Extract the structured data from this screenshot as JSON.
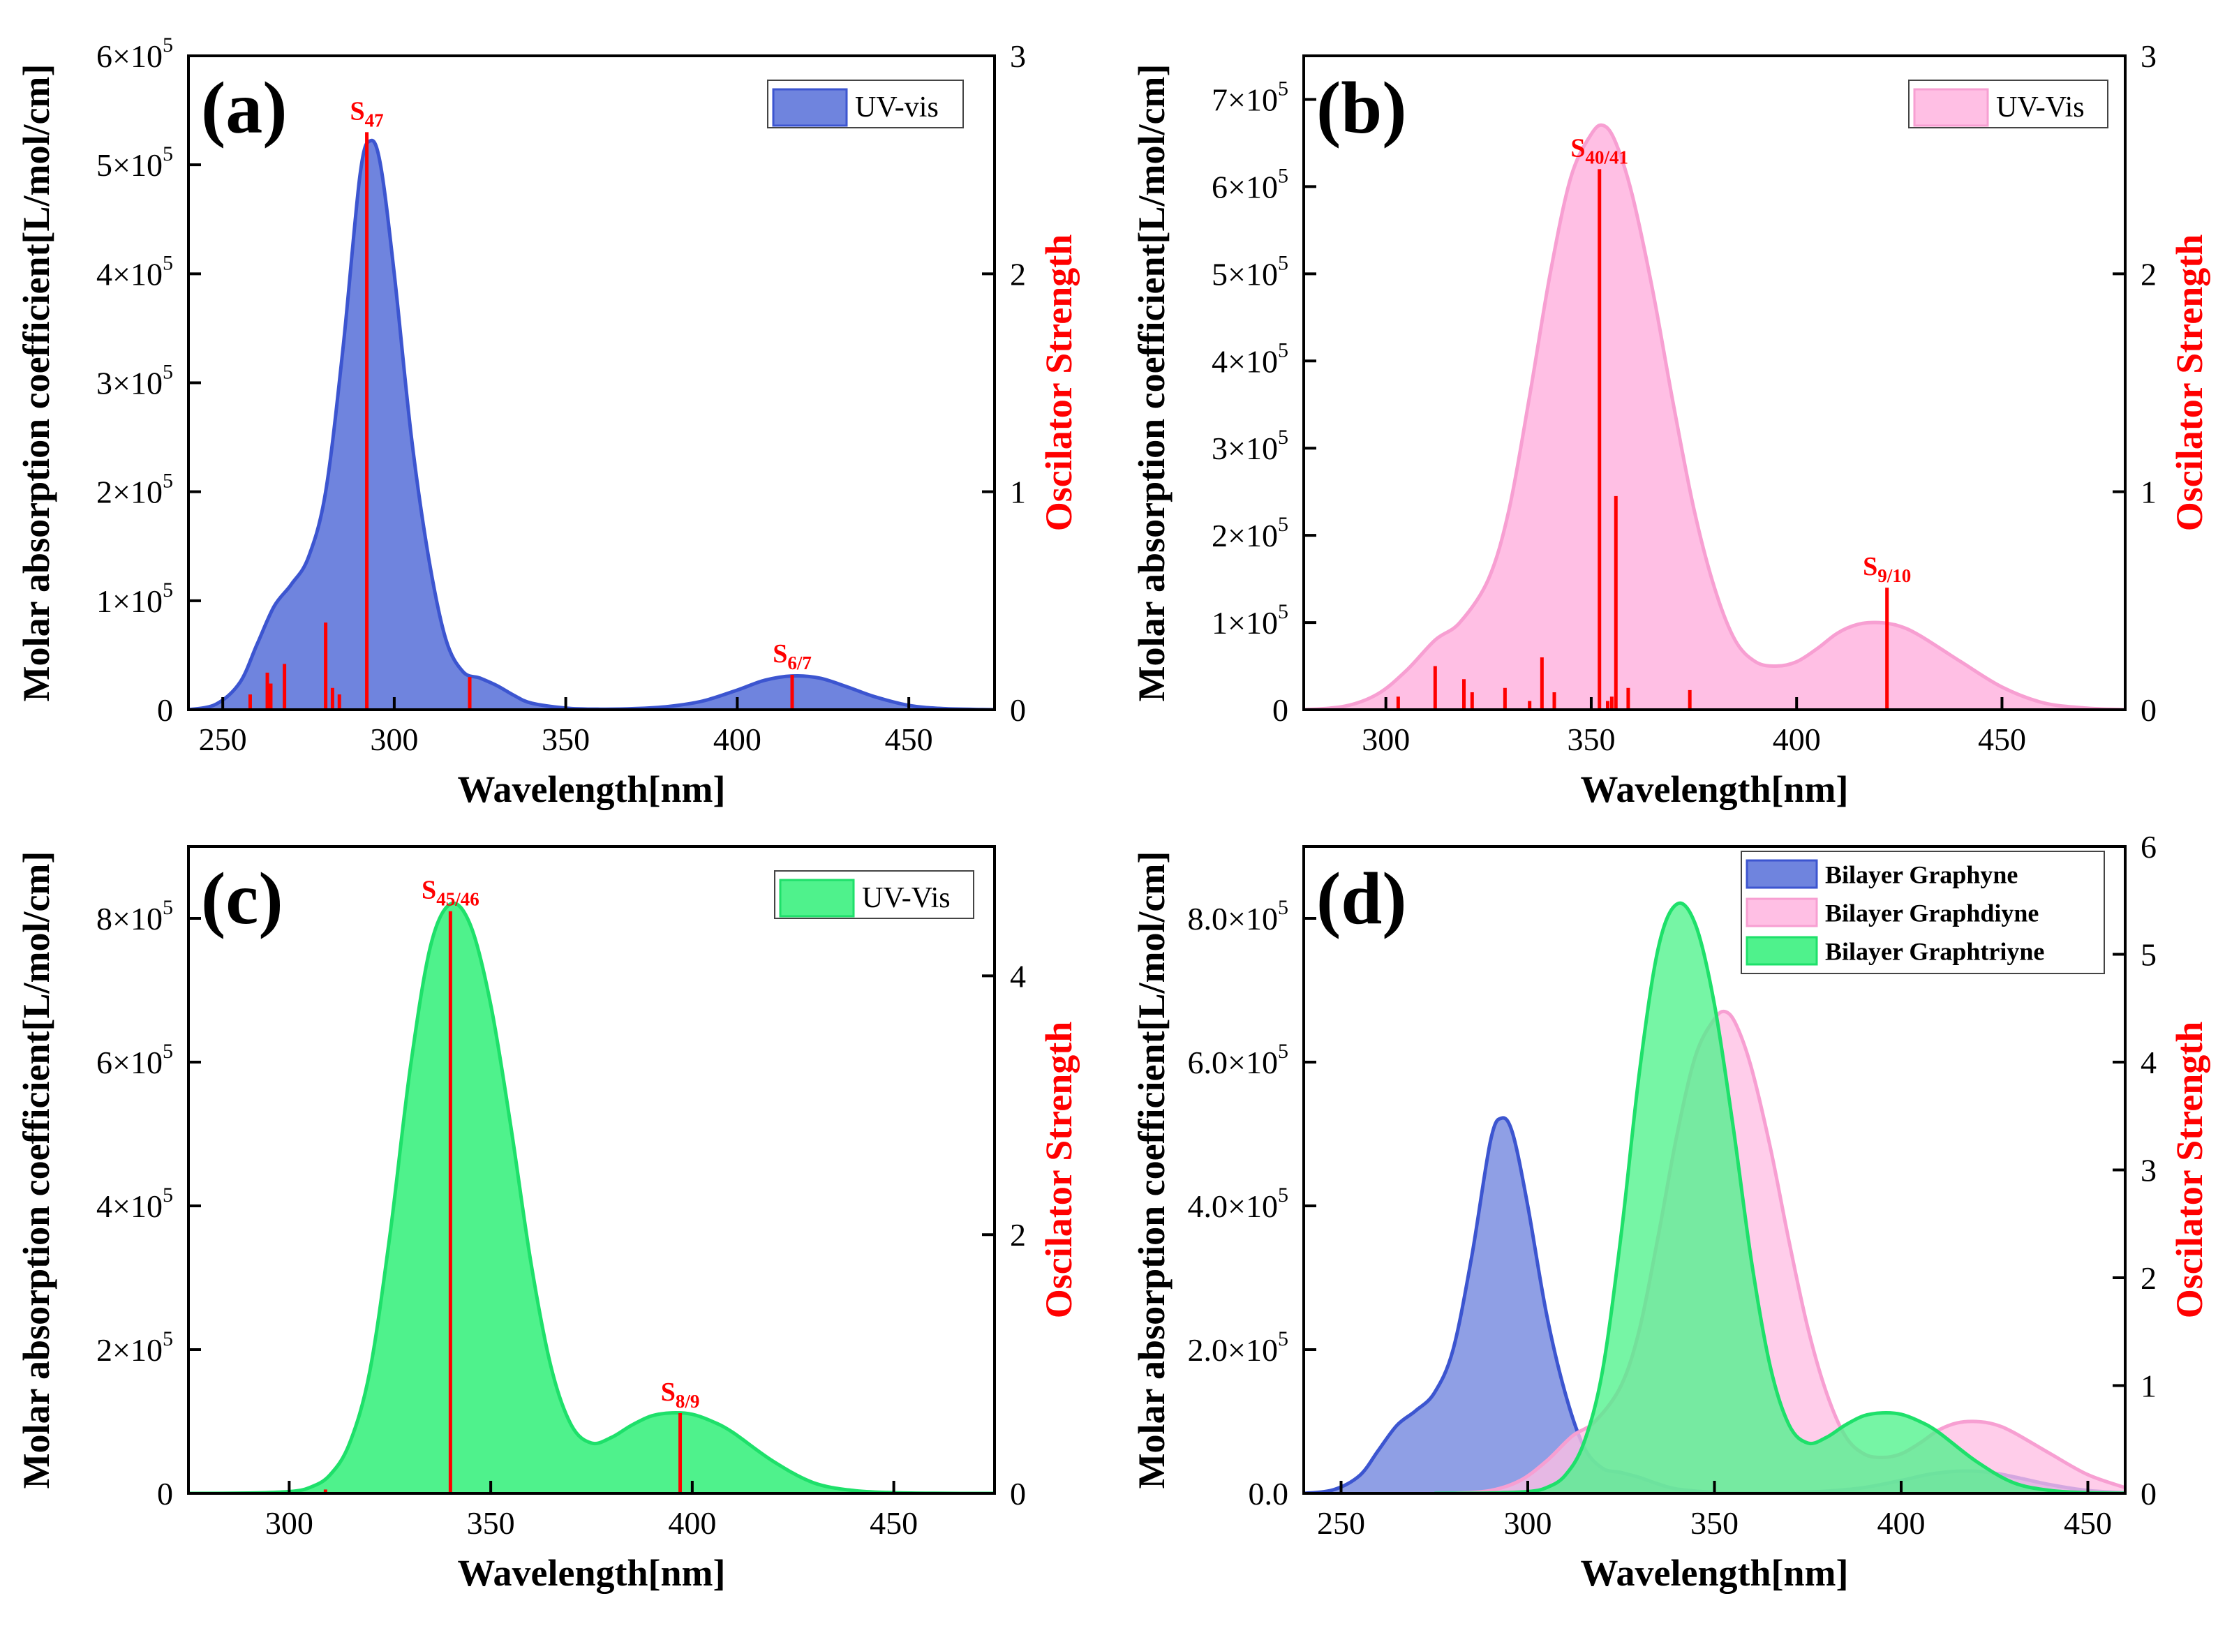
{
  "colors": {
    "graphyne_fill": "#6f84de",
    "graphyne_line": "#3c55d0",
    "graphdiyne_fill": "#ffbfe4",
    "graphdiyne_line": "#f79fd2",
    "graphtriyne_fill": "#4ff28c",
    "graphtriyne_line": "#1ee06a",
    "stick": "#ff0000",
    "axis": "#000000"
  },
  "chart_data": [
    {
      "panel_label": "(a)",
      "type": "area",
      "xlabel": "Wavelength[nm]",
      "ylabel": "Molar absorption coefficient[L/mol/cm]",
      "y2label": "Oscilator Strength",
      "xlim": [
        240,
        475
      ],
      "ylim": [
        0,
        600000
      ],
      "y2lim": [
        0,
        3
      ],
      "xticks": [
        250,
        300,
        350,
        400,
        450
      ],
      "xtick_labels": [
        "250",
        "300",
        "350",
        "400",
        "450"
      ],
      "yticks": [
        0,
        100000,
        200000,
        300000,
        400000,
        500000,
        600000
      ],
      "ytick_labels": [
        {
          "base": "0",
          "exp": ""
        },
        {
          "base": "1×10",
          "exp": "5"
        },
        {
          "base": "2×10",
          "exp": "5"
        },
        {
          "base": "3×10",
          "exp": "5"
        },
        {
          "base": "4×10",
          "exp": "5"
        },
        {
          "base": "5×10",
          "exp": "5"
        },
        {
          "base": "6×10",
          "exp": "5"
        }
      ],
      "y2ticks": [
        0,
        1,
        2,
        3
      ],
      "y2tick_labels": [
        "0",
        "1",
        "2",
        "3"
      ],
      "legend_location": "top-right",
      "series": [
        {
          "name": "UV-vis",
          "color_key": "graphyne",
          "x": [
            240,
            248,
            255,
            260,
            265,
            270,
            275,
            280,
            285,
            290,
            293,
            296,
            300,
            305,
            310,
            315,
            320,
            325,
            330,
            335,
            340,
            350,
            360,
            370,
            380,
            390,
            400,
            408,
            416,
            424,
            432,
            440,
            450,
            460,
            475
          ],
          "y": [
            0,
            5000,
            25000,
            60000,
            95000,
            115000,
            140000,
            200000,
            330000,
            490000,
            522000,
            500000,
            400000,
            250000,
            140000,
            65000,
            35000,
            29000,
            22000,
            13000,
            6000,
            1500,
            500,
            1000,
            3000,
            8000,
            18000,
            27000,
            31000,
            29000,
            21000,
            12000,
            4000,
            1000,
            0
          ]
        }
      ],
      "sticks": {
        "x": [
          258,
          263,
          264,
          268,
          280,
          282,
          284,
          292,
          322,
          416
        ],
        "y": [
          0.07,
          0.17,
          0.12,
          0.21,
          0.4,
          0.1,
          0.07,
          2.65,
          0.15,
          0.16
        ]
      },
      "peak_labels": [
        {
          "main": "S",
          "sub": "47",
          "x": 292
        },
        {
          "main": "S",
          "sub": "6/7",
          "x": 416
        }
      ]
    },
    {
      "panel_label": "(b)",
      "type": "area",
      "xlabel": "Wavelength[nm]",
      "ylabel": "Molar absorption coefficient[L/mol/cm]",
      "y2label": "Oscilator Strength",
      "xlim": [
        280,
        480
      ],
      "ylim": [
        0,
        750000
      ],
      "y2lim": [
        0,
        3
      ],
      "xticks": [
        300,
        350,
        400,
        450
      ],
      "xtick_labels": [
        "300",
        "350",
        "400",
        "450"
      ],
      "yticks": [
        0,
        100000,
        200000,
        300000,
        400000,
        500000,
        600000,
        700000
      ],
      "ytick_labels": [
        {
          "base": "0",
          "exp": ""
        },
        {
          "base": "1×10",
          "exp": "5"
        },
        {
          "base": "2×10",
          "exp": "5"
        },
        {
          "base": "3×10",
          "exp": "5"
        },
        {
          "base": "4×10",
          "exp": "5"
        },
        {
          "base": "5×10",
          "exp": "5"
        },
        {
          "base": "6×10",
          "exp": "5"
        },
        {
          "base": "7×10",
          "exp": "5"
        }
      ],
      "y2ticks": [
        0,
        1,
        2,
        3
      ],
      "y2tick_labels": [
        "0",
        "1",
        "2",
        "3"
      ],
      "legend_location": "top-right",
      "series": [
        {
          "name": "UV-Vis",
          "color_key": "graphdiyne",
          "x": [
            280,
            290,
            298,
            305,
            312,
            318,
            325,
            330,
            335,
            340,
            345,
            350,
            353,
            356,
            360,
            365,
            370,
            375,
            380,
            385,
            390,
            395,
            400,
            405,
            410,
            415,
            420,
            425,
            430,
            440,
            450,
            460,
            470,
            480
          ],
          "y": [
            0,
            4000,
            18000,
            45000,
            80000,
            100000,
            150000,
            230000,
            360000,
            500000,
            610000,
            660000,
            670000,
            650000,
            590000,
            480000,
            350000,
            230000,
            140000,
            80000,
            55000,
            50000,
            55000,
            70000,
            88000,
            98000,
            100000,
            96000,
            85000,
            55000,
            26000,
            8000,
            2000,
            0
          ]
        }
      ],
      "sticks": {
        "x": [
          303,
          312,
          319,
          321,
          329,
          335,
          338,
          341,
          352,
          354,
          355,
          356,
          359,
          374,
          422
        ],
        "y": [
          0.06,
          0.2,
          0.14,
          0.08,
          0.1,
          0.04,
          0.24,
          0.08,
          2.48,
          0.04,
          0.06,
          0.98,
          0.1,
          0.09,
          0.56
        ]
      },
      "peak_labels": [
        {
          "main": "S",
          "sub": "40/41",
          "x": 352
        },
        {
          "main": "S",
          "sub": "9/10",
          "x": 422
        }
      ]
    },
    {
      "panel_label": "(c)",
      "type": "area",
      "xlabel": "Wavelength[nm]",
      "ylabel": "Molar absorption coefficient[L/mol/cm]",
      "y2label": "Oscilator Strength",
      "xlim": [
        275,
        475
      ],
      "ylim": [
        0,
        900000
      ],
      "y2lim": [
        0,
        5
      ],
      "xticks": [
        300,
        350,
        400,
        450
      ],
      "xtick_labels": [
        "300",
        "350",
        "400",
        "450"
      ],
      "yticks": [
        0,
        200000,
        400000,
        600000,
        800000
      ],
      "ytick_labels": [
        {
          "base": "0",
          "exp": ""
        },
        {
          "base": "2×10",
          "exp": "5"
        },
        {
          "base": "4×10",
          "exp": "5"
        },
        {
          "base": "6×10",
          "exp": "5"
        },
        {
          "base": "8×10",
          "exp": "5"
        }
      ],
      "y2ticks": [
        0,
        2,
        4
      ],
      "y2tick_labels": [
        "0",
        "2",
        "4"
      ],
      "legend_location": "top-right",
      "series": [
        {
          "name": "UV-Vis",
          "color_key": "graphtriyne",
          "x": [
            275,
            290,
            300,
            305,
            310,
            315,
            320,
            325,
            330,
            335,
            340,
            345,
            350,
            355,
            360,
            365,
            370,
            375,
            380,
            385,
            390,
            395,
            400,
            405,
            410,
            420,
            430,
            440,
            450,
            460,
            475
          ],
          "y": [
            0,
            500,
            2500,
            8000,
            25000,
            70000,
            170000,
            360000,
            590000,
            760000,
            820000,
            790000,
            680000,
            510000,
            320000,
            175000,
            95000,
            70000,
            78000,
            95000,
            108000,
            112000,
            110000,
            100000,
            85000,
            45000,
            15000,
            4000,
            1000,
            200,
            0
          ]
        }
      ],
      "sticks": {
        "x": [
          309,
          340,
          397
        ],
        "y": [
          0.03,
          4.5,
          0.62
        ]
      },
      "peak_labels": [
        {
          "main": "S",
          "sub": "45/46",
          "x": 340
        },
        {
          "main": "S",
          "sub": "8/9",
          "x": 397
        }
      ]
    },
    {
      "panel_label": "(d)",
      "type": "area",
      "xlabel": "Wavelength[nm]",
      "ylabel": "Molar absorption coefficient[L/mol/cm]",
      "y2label": "Oscilator Strength",
      "xlim": [
        240,
        460
      ],
      "ylim": [
        0,
        900000
      ],
      "y2lim": [
        0,
        6
      ],
      "xticks": [
        250,
        300,
        350,
        400,
        450
      ],
      "xtick_labels": [
        "250",
        "300",
        "350",
        "400",
        "450"
      ],
      "yticks": [
        0,
        200000,
        400000,
        600000,
        800000
      ],
      "ytick_labels": [
        {
          "base": "0.0",
          "exp": ""
        },
        {
          "base": "2.0×10",
          "exp": "5"
        },
        {
          "base": "4.0×10",
          "exp": "5"
        },
        {
          "base": "6.0×10",
          "exp": "5"
        },
        {
          "base": "8.0×10",
          "exp": "5"
        }
      ],
      "y2ticks": [
        0,
        1,
        2,
        3,
        4,
        5,
        6
      ],
      "y2tick_labels": [
        "0",
        "1",
        "2",
        "3",
        "4",
        "5",
        "6"
      ],
      "legend_location": "top-right",
      "series": [
        {
          "name": "Bilayer Graphyne",
          "color_key": "graphyne",
          "x": [
            240,
            248,
            255,
            260,
            265,
            270,
            275,
            280,
            285,
            290,
            293,
            296,
            300,
            305,
            310,
            315,
            320,
            325,
            330,
            335,
            340,
            350,
            360,
            370,
            380,
            390,
            400,
            408,
            416,
            424,
            432,
            440,
            450,
            460
          ],
          "y": [
            0,
            5000,
            25000,
            60000,
            95000,
            115000,
            140000,
            200000,
            330000,
            490000,
            522000,
            500000,
            400000,
            250000,
            140000,
            65000,
            35000,
            29000,
            22000,
            13000,
            6000,
            1500,
            500,
            1000,
            3000,
            8000,
            18000,
            27000,
            31000,
            29000,
            21000,
            12000,
            4000,
            1000
          ]
        },
        {
          "name": "Bilayer Graphdiyne",
          "color_key": "graphdiyne",
          "x": [
            280,
            290,
            298,
            305,
            312,
            318,
            325,
            330,
            335,
            340,
            345,
            350,
            353,
            356,
            360,
            365,
            370,
            375,
            380,
            385,
            390,
            395,
            400,
            405,
            410,
            415,
            420,
            425,
            430,
            440,
            450,
            460
          ],
          "y": [
            0,
            4000,
            18000,
            45000,
            80000,
            100000,
            150000,
            230000,
            360000,
            500000,
            610000,
            660000,
            670000,
            650000,
            590000,
            480000,
            350000,
            230000,
            140000,
            80000,
            55000,
            50000,
            55000,
            70000,
            88000,
            98000,
            100000,
            96000,
            85000,
            55000,
            26000,
            8000
          ]
        },
        {
          "name": "Bilayer Graphtriyne",
          "color_key": "graphtriyne",
          "x": [
            275,
            290,
            300,
            305,
            310,
            315,
            320,
            325,
            330,
            335,
            340,
            345,
            350,
            355,
            360,
            365,
            370,
            375,
            380,
            385,
            390,
            395,
            400,
            405,
            410,
            420,
            430,
            440,
            450,
            460
          ],
          "y": [
            0,
            500,
            2500,
            8000,
            25000,
            70000,
            170000,
            360000,
            590000,
            760000,
            820000,
            790000,
            680000,
            510000,
            320000,
            175000,
            95000,
            70000,
            78000,
            95000,
            108000,
            112000,
            110000,
            100000,
            85000,
            45000,
            15000,
            4000,
            1000,
            200
          ]
        }
      ],
      "sticks": {
        "x": [],
        "y": []
      },
      "peak_labels": []
    }
  ]
}
